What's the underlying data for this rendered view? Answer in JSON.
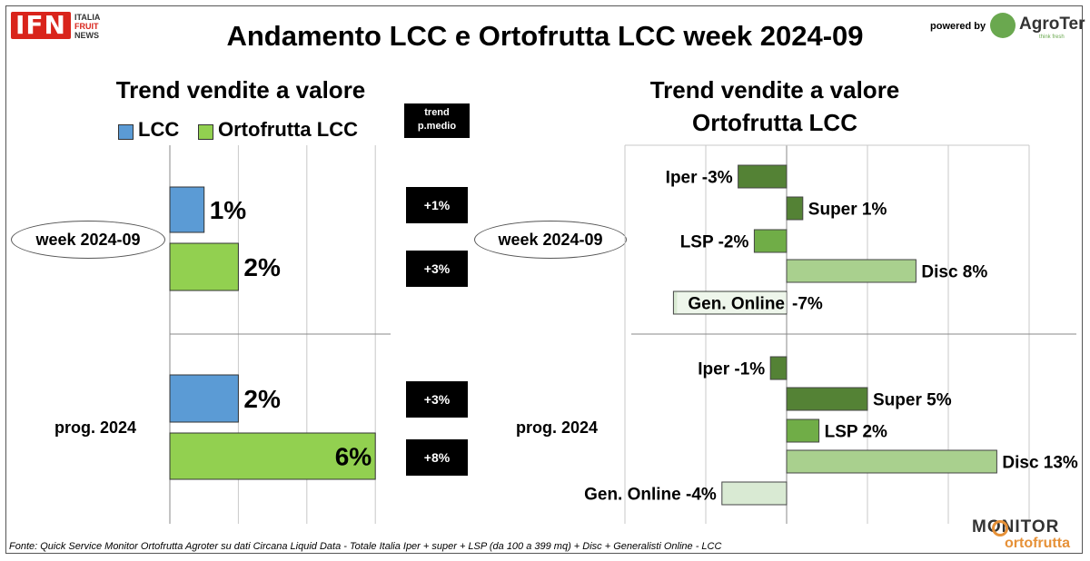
{
  "header": {
    "title": "Andamento LCC e Ortofrutta LCC week 2024-09",
    "ifn_logo": "IFN",
    "ifn_line1": "ITALIA",
    "ifn_line2": "FRUIT",
    "ifn_line3": "NEWS",
    "powered_by": "powered by",
    "agroter_logo": "AgroTer",
    "agroter_tag": "think fresh"
  },
  "left": {
    "title": "Trend vendite a valore",
    "legend": [
      "LCC",
      "Ortofrutta LCC"
    ],
    "trend_header_line1": "trend",
    "trend_header_line2": "p.medio",
    "group_labels": [
      "week 2024-09",
      "prog. 2024"
    ],
    "badges": [
      "+1%",
      "+3%",
      "+3%",
      "+8%"
    ]
  },
  "right": {
    "title_line1": "Trend vendite a valore",
    "title_line2": "Ortofrutta LCC",
    "group_labels": [
      "week 2024-09",
      "prog. 2024"
    ]
  },
  "footer": {
    "source": "Fonte: Quick Service Monitor Ortofrutta Agroter su dati Circana Liquid Data - Totale Italia Iper + super + LSP (da 100 a 399 mq) + Disc + Generalisti Online - LCC",
    "monitor_line1": "MONITOR",
    "monitor_line2": "ortofrutta"
  },
  "colors": {
    "lcc": "#5b9bd5",
    "ortofrutta": "#92d050",
    "iper": "#548235",
    "super": "#548235",
    "lsp": "#70ad47",
    "disc": "#a9d08e",
    "online": "#d9ead3"
  },
  "chart_data": [
    {
      "type": "bar",
      "orientation": "horizontal",
      "title": "Trend vendite a valore",
      "categories": [
        "week 2024-09",
        "prog. 2024"
      ],
      "series": [
        {
          "name": "LCC",
          "values": [
            1,
            2
          ],
          "labels": [
            "1%",
            "2%"
          ]
        },
        {
          "name": "Ortofrutta LCC",
          "values": [
            2,
            6
          ],
          "labels": [
            "2%",
            "6%"
          ]
        }
      ],
      "trend_p_medio": {
        "LCC": [
          "+1%",
          "+3%"
        ],
        "Ortofrutta LCC": [
          "+3%",
          "+8%"
        ]
      },
      "xlim": [
        0,
        7
      ],
      "grid": true,
      "legend": "top"
    },
    {
      "type": "bar",
      "orientation": "horizontal",
      "title": "Trend vendite a valore Ortofrutta LCC",
      "groups": [
        {
          "name": "week 2024-09",
          "bars": [
            {
              "channel": "Iper",
              "value": -3,
              "label": "Iper -3%"
            },
            {
              "channel": "Super",
              "value": 1,
              "label": "Super 1%"
            },
            {
              "channel": "LSP",
              "value": -2,
              "label": "LSP -2%"
            },
            {
              "channel": "Disc",
              "value": 8,
              "label": "Disc 8%"
            },
            {
              "channel": "Gen. Online",
              "value": -7,
              "label": "Gen. Online",
              "value_label": "-7%"
            }
          ]
        },
        {
          "name": "prog. 2024",
          "bars": [
            {
              "channel": "Iper",
              "value": -1,
              "label": "Iper -1%"
            },
            {
              "channel": "Super",
              "value": 5,
              "label": "Super 5%"
            },
            {
              "channel": "LSP",
              "value": 2,
              "label": "LSP 2%"
            },
            {
              "channel": "Disc",
              "value": 13,
              "label": "Disc 13%"
            },
            {
              "channel": "Gen. Online",
              "value": -4,
              "label": "Gen. Online -4%"
            }
          ]
        }
      ],
      "xlim": [
        -10,
        15
      ],
      "grid": true
    }
  ]
}
